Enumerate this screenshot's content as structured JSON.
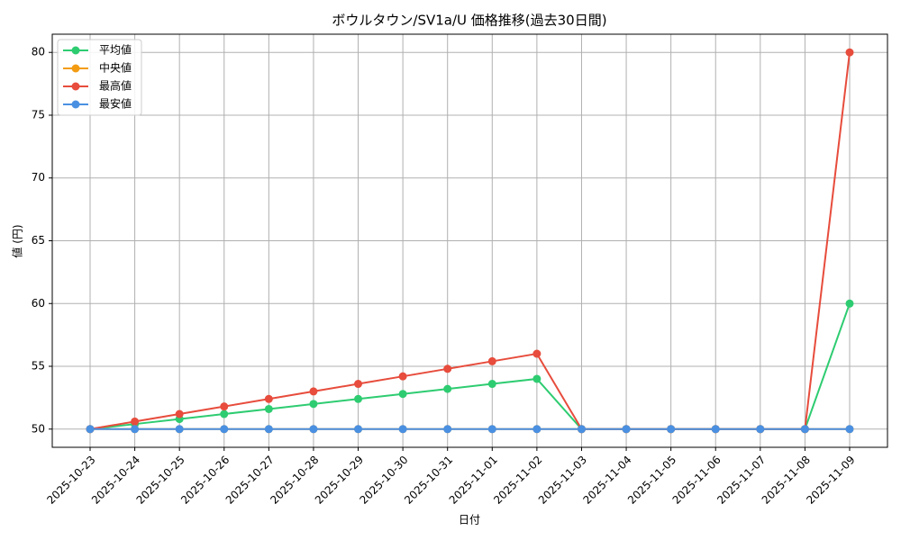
{
  "chart_data": {
    "type": "line",
    "title": "ボウルタウン/SV1a/U 価格推移(過去30日間)",
    "x_label": "日付",
    "y_label": "値 (円)",
    "categories": [
      "2025-10-23",
      "2025-10-24",
      "2025-10-25",
      "2025-10-26",
      "2025-10-27",
      "2025-10-28",
      "2025-10-29",
      "2025-10-30",
      "2025-10-31",
      "2025-11-01",
      "2025-11-02",
      "2025-11-03",
      "2025-11-04",
      "2025-11-05",
      "2025-11-06",
      "2025-11-07",
      "2025-11-08",
      "2025-11-09"
    ],
    "series": [
      {
        "name": "平均値",
        "color": "#2ecc71",
        "values": [
          50,
          50.4,
          50.8,
          51.2,
          51.6,
          52.0,
          52.4,
          52.8,
          53.2,
          53.6,
          54.0,
          50,
          50,
          50,
          50,
          50,
          50,
          60
        ]
      },
      {
        "name": "中央値",
        "color": "#f39c12",
        "values": [
          50,
          50,
          50,
          50,
          50,
          50,
          50,
          50,
          50,
          50,
          50,
          50,
          50,
          50,
          50,
          50,
          50,
          50
        ]
      },
      {
        "name": "最高値",
        "color": "#e74c3c",
        "values": [
          50,
          50.6,
          51.2,
          51.8,
          52.4,
          53.0,
          53.6,
          54.2,
          54.8,
          55.4,
          56.0,
          50,
          50,
          50,
          50,
          50,
          50,
          80
        ]
      },
      {
        "name": "最安値",
        "color": "#4a90e2",
        "values": [
          50,
          50,
          50,
          50,
          50,
          50,
          50,
          50,
          50,
          50,
          50,
          50,
          50,
          50,
          50,
          50,
          50,
          50
        ]
      }
    ],
    "ylim": [
      48.55,
      81.45
    ],
    "yticks": [
      50,
      55,
      60,
      65,
      70,
      75,
      80
    ],
    "grid": true,
    "legend": "upper-left"
  }
}
